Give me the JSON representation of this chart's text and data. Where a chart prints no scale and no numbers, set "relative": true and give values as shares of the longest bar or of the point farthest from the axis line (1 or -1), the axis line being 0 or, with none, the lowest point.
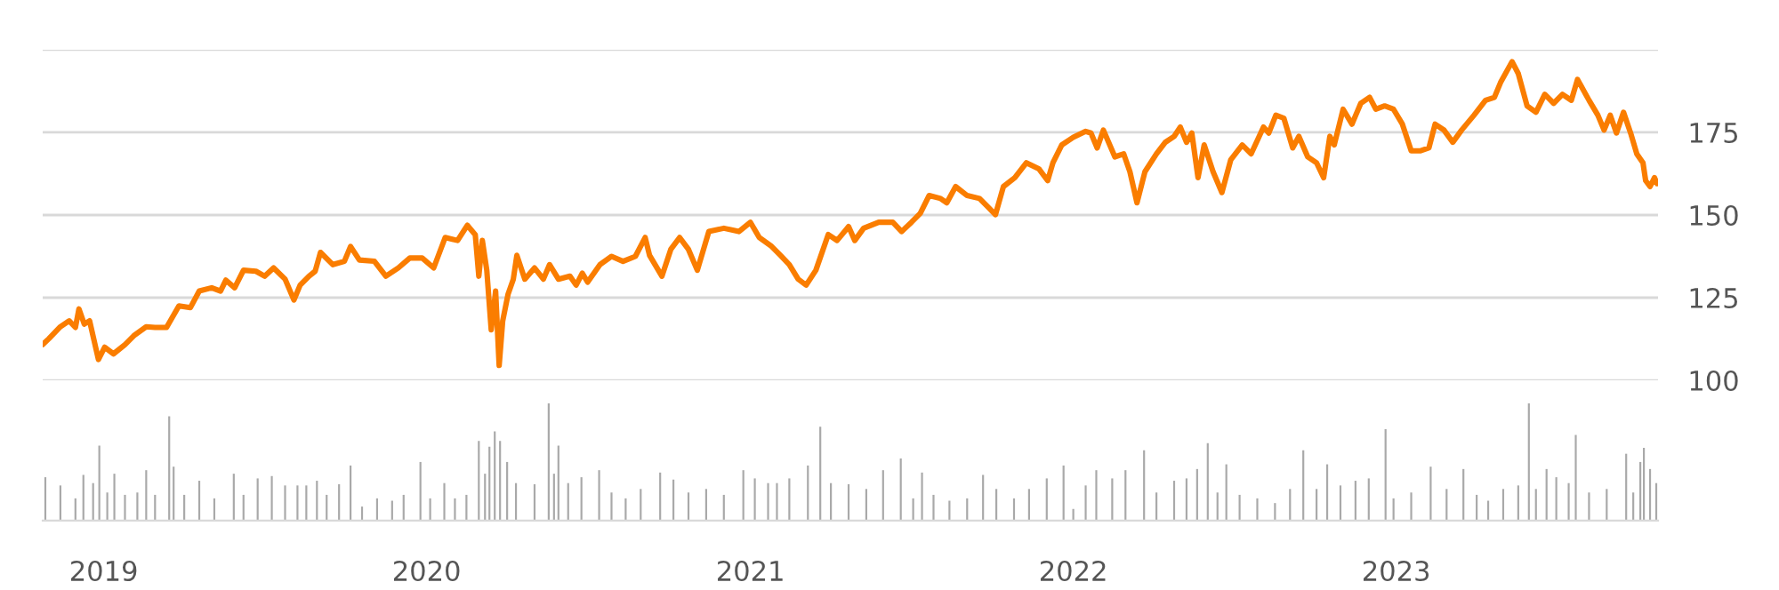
{
  "chart_data": [
    {
      "type": "line",
      "color": "#fa7d00",
      "xlim": [
        "2018-10-24",
        "2023-10-24"
      ],
      "ylim": [
        100,
        200
      ],
      "yticks": [
        100,
        125,
        150,
        175,
        {
          "value": 200,
          "label": null
        }
      ],
      "grid": "y",
      "tick_labels": "y",
      "x": [
        "2018-10-24",
        "2018-10-31",
        "2018-11-13",
        "2018-11-23",
        "2018-11-30",
        "2018-12-04",
        "2018-12-10",
        "2018-12-16",
        "2018-12-26",
        "2019-01-02",
        "2019-01-12",
        "2019-01-25",
        "2019-02-04",
        "2019-02-18",
        "2019-02-28",
        "2019-03-13",
        "2019-03-27",
        "2019-04-09",
        "2019-04-19",
        "2019-05-03",
        "2019-05-13",
        "2019-05-19",
        "2019-05-29",
        "2019-06-08",
        "2019-06-22",
        "2019-07-02",
        "2019-07-12",
        "2019-07-25",
        "2019-08-04",
        "2019-08-11",
        "2019-08-21",
        "2019-08-28",
        "2019-09-03",
        "2019-09-17",
        "2019-09-30",
        "2019-10-07",
        "2019-10-17",
        "2019-11-03",
        "2019-11-16",
        "2019-11-30",
        "2019-12-13",
        "2019-12-27",
        "2020-01-09",
        "2020-01-22",
        "2020-02-05",
        "2020-02-16",
        "2020-02-25",
        "2020-02-29",
        "2020-03-04",
        "2020-03-09",
        "2020-03-14",
        "2020-03-19",
        "2020-03-23",
        "2020-03-27",
        "2020-04-02",
        "2020-04-08",
        "2020-04-12",
        "2020-04-21",
        "2020-05-02",
        "2020-05-12",
        "2020-05-19",
        "2020-05-29",
        "2020-06-11",
        "2020-06-18",
        "2020-06-25",
        "2020-07-01",
        "2020-07-15",
        "2020-07-28",
        "2020-08-10",
        "2020-08-24",
        "2020-09-04",
        "2020-09-09",
        "2020-09-23",
        "2020-10-03",
        "2020-10-13",
        "2020-10-23",
        "2020-11-02",
        "2020-11-15",
        "2020-12-02",
        "2020-12-19",
        "2021-01-01",
        "2021-01-11",
        "2021-01-25",
        "2021-02-04",
        "2021-02-14",
        "2021-02-24",
        "2021-03-05",
        "2021-03-16",
        "2021-03-30",
        "2021-04-09",
        "2021-04-22",
        "2021-04-29",
        "2021-05-09",
        "2021-05-26",
        "2021-06-11",
        "2021-06-21",
        "2021-07-02",
        "2021-07-12",
        "2021-07-22",
        "2021-08-04",
        "2021-08-11",
        "2021-08-21",
        "2021-09-03",
        "2021-09-17",
        "2021-09-27",
        "2021-10-05",
        "2021-10-14",
        "2021-10-27",
        "2021-11-09",
        "2021-11-23",
        "2021-12-03",
        "2021-12-09",
        "2021-12-19",
        "2022-01-01",
        "2022-01-15",
        "2022-01-21",
        "2022-01-28",
        "2022-02-04",
        "2022-02-17",
        "2022-02-27",
        "2022-03-06",
        "2022-03-14",
        "2022-03-23",
        "2022-04-05",
        "2022-04-15",
        "2022-04-25",
        "2022-05-02",
        "2022-05-09",
        "2022-05-15",
        "2022-05-22",
        "2022-05-29",
        "2022-06-08",
        "2022-06-18",
        "2022-06-28",
        "2022-07-11",
        "2022-07-21",
        "2022-08-04",
        "2022-08-10",
        "2022-08-18",
        "2022-08-27",
        "2022-09-06",
        "2022-09-13",
        "2022-09-23",
        "2022-10-03",
        "2022-10-11",
        "2022-10-18",
        "2022-10-23",
        "2022-11-02",
        "2022-11-12",
        "2022-11-22",
        "2022-12-02",
        "2022-12-09",
        "2022-12-19",
        "2022-12-29",
        "2023-01-08",
        "2023-01-18",
        "2023-01-28",
        "2023-02-07",
        "2023-02-14",
        "2023-02-24",
        "2023-03-06",
        "2023-03-16",
        "2023-03-30",
        "2023-04-12",
        "2023-04-22",
        "2023-04-29",
        "2023-05-12",
        "2023-05-19",
        "2023-05-29",
        "2023-06-08",
        "2023-06-18",
        "2023-06-28",
        "2023-07-08",
        "2023-07-18",
        "2023-07-25",
        "2023-08-07",
        "2023-08-17",
        "2023-08-24",
        "2023-08-31",
        "2023-09-07",
        "2023-09-15",
        "2023-09-23",
        "2023-09-30",
        "2023-10-07",
        "2023-10-10",
        "2023-10-15",
        "2023-10-20",
        "2023-10-23"
      ],
      "values": [
        110.8,
        112.6,
        116.2,
        118,
        116,
        121.6,
        117,
        118,
        106.3,
        110,
        108,
        110.8,
        113.5,
        116.2,
        116,
        116,
        122.5,
        122,
        127,
        128,
        127,
        130.3,
        128,
        133.3,
        133,
        131.5,
        134,
        130.6,
        124.3,
        128.8,
        131.5,
        133,
        138.7,
        135,
        136,
        140.5,
        136.4,
        136,
        131.5,
        134,
        137,
        137,
        134,
        143.2,
        142.3,
        146.9,
        144,
        131.5,
        142.3,
        133.3,
        115.3,
        127,
        104.5,
        118,
        126,
        130.6,
        137.8,
        130.6,
        134,
        130.6,
        135,
        130.6,
        131.5,
        128.8,
        132.4,
        129.7,
        135,
        137.5,
        136,
        137.5,
        143.2,
        137.8,
        131.5,
        139.6,
        143.2,
        139.6,
        133.3,
        145,
        146,
        145,
        147.8,
        143.2,
        140.5,
        137.8,
        135,
        130.6,
        128.8,
        133.3,
        144.1,
        142.3,
        146.5,
        142.3,
        146,
        147.8,
        147.8,
        145,
        147.8,
        150.5,
        155.9,
        155,
        153.7,
        158.6,
        155.9,
        155,
        152.3,
        150.1,
        158.6,
        161.3,
        165.8,
        164,
        160.4,
        165.8,
        171.2,
        173.5,
        175.3,
        174.8,
        170.3,
        175.7,
        167.6,
        168.5,
        163.1,
        153.7,
        163.1,
        168.5,
        172,
        173.8,
        176.6,
        172,
        174.8,
        161.3,
        171.2,
        163.1,
        156.8,
        166.7,
        171.2,
        168.5,
        176.6,
        174.8,
        180.2,
        179.3,
        170.3,
        173.8,
        167.6,
        165.8,
        161.3,
        173.8,
        171.2,
        182,
        177.5,
        183.8,
        185.6,
        182,
        183,
        182,
        177.5,
        169.4,
        169.4,
        170.3,
        177.5,
        175.7,
        172,
        175.7,
        180.2,
        184.7,
        185.6,
        190.1,
        196.4,
        192.8,
        183,
        181.1,
        186.5,
        183.8,
        186.5,
        184.7,
        191,
        184.7,
        180.2,
        175.7,
        180.2,
        174.8,
        181.1,
        174.8,
        168.5,
        165.8,
        160.4,
        158.6,
        161.3,
        159.5
      ]
    },
    {
      "type": "bar",
      "color": "#a9a9a9",
      "relative": true,
      "xlim": [
        "2018-10-24",
        "2023-10-24"
      ],
      "xticks": [
        "2019",
        "2020",
        "2021",
        "2022",
        "2023"
      ],
      "tick_labels": "x",
      "x": [
        "2018-10-27",
        "2018-11-13",
        "2018-11-30",
        "2018-12-09",
        "2018-12-20",
        "2018-12-27",
        "2019-01-05",
        "2019-01-13",
        "2019-01-25",
        "2019-02-08",
        "2019-02-18",
        "2019-02-28",
        "2019-03-16",
        "2019-03-21",
        "2019-04-02",
        "2019-04-19",
        "2019-05-06",
        "2019-05-28",
        "2019-06-08",
        "2019-06-24",
        "2019-07-10",
        "2019-07-25",
        "2019-08-08",
        "2019-08-18",
        "2019-08-30",
        "2019-09-10",
        "2019-09-24",
        "2019-10-07",
        "2019-10-20",
        "2019-11-06",
        "2019-11-23",
        "2019-12-06",
        "2019-12-25",
        "2020-01-05",
        "2020-01-21",
        "2020-02-02",
        "2020-02-15",
        "2020-02-29",
        "2020-03-07",
        "2020-03-12",
        "2020-03-18",
        "2020-03-24",
        "2020-04-01",
        "2020-04-11",
        "2020-05-02",
        "2020-05-18",
        "2020-05-24",
        "2020-05-29",
        "2020-06-09",
        "2020-06-24",
        "2020-07-14",
        "2020-07-28",
        "2020-08-13",
        "2020-08-30",
        "2020-09-21",
        "2020-10-06",
        "2020-10-23",
        "2020-11-12",
        "2020-12-02",
        "2020-12-24",
        "2021-01-06",
        "2021-01-21",
        "2021-01-31",
        "2021-02-14",
        "2021-03-07",
        "2021-03-21",
        "2021-04-02",
        "2021-04-22",
        "2021-05-12",
        "2021-05-31",
        "2021-06-20",
        "2021-07-04",
        "2021-07-14",
        "2021-07-27",
        "2021-08-14",
        "2021-09-03",
        "2021-09-21",
        "2021-10-06",
        "2021-10-26",
        "2021-11-12",
        "2021-12-02",
        "2021-12-21",
        "2022-01-01",
        "2022-01-15",
        "2022-01-27",
        "2022-02-14",
        "2022-03-01",
        "2022-03-22",
        "2022-04-05",
        "2022-04-25",
        "2022-05-09",
        "2022-05-21",
        "2022-06-02",
        "2022-06-13",
        "2022-06-23",
        "2022-07-08",
        "2022-07-28",
        "2022-08-17",
        "2022-09-03",
        "2022-09-18",
        "2022-10-03",
        "2022-10-15",
        "2022-10-30",
        "2022-11-16",
        "2022-12-01",
        "2022-12-20",
        "2022-12-29",
        "2023-01-18",
        "2023-02-09",
        "2023-02-27",
        "2023-03-18",
        "2023-04-02",
        "2023-04-15",
        "2023-05-02",
        "2023-05-19",
        "2023-05-31",
        "2023-06-08",
        "2023-06-20",
        "2023-07-01",
        "2023-07-15",
        "2023-07-23",
        "2023-08-07",
        "2023-08-27",
        "2023-09-18",
        "2023-09-26",
        "2023-10-04",
        "2023-10-08",
        "2023-10-15",
        "2023-10-22"
      ],
      "values": [
        0.37,
        0.3,
        0.19,
        0.39,
        0.32,
        0.64,
        0.24,
        0.4,
        0.22,
        0.24,
        0.43,
        0.22,
        0.89,
        0.46,
        0.22,
        0.34,
        0.19,
        0.4,
        0.22,
        0.36,
        0.38,
        0.3,
        0.3,
        0.3,
        0.34,
        0.22,
        0.31,
        0.47,
        0.12,
        0.19,
        0.17,
        0.22,
        0.5,
        0.19,
        0.32,
        0.19,
        0.22,
        0.68,
        0.4,
        0.63,
        0.76,
        0.68,
        0.5,
        0.32,
        0.31,
        1.0,
        0.4,
        0.64,
        0.32,
        0.37,
        0.43,
        0.24,
        0.19,
        0.27,
        0.41,
        0.35,
        0.24,
        0.27,
        0.22,
        0.43,
        0.36,
        0.32,
        0.32,
        0.36,
        0.47,
        0.8,
        0.32,
        0.31,
        0.27,
        0.43,
        0.53,
        0.19,
        0.41,
        0.22,
        0.17,
        0.19,
        0.39,
        0.27,
        0.19,
        0.27,
        0.36,
        0.47,
        0.1,
        0.3,
        0.43,
        0.36,
        0.43,
        0.6,
        0.24,
        0.34,
        0.36,
        0.44,
        0.66,
        0.24,
        0.48,
        0.22,
        0.19,
        0.15,
        0.27,
        0.6,
        0.27,
        0.48,
        0.3,
        0.34,
        0.36,
        0.78,
        0.19,
        0.24,
        0.46,
        0.27,
        0.44,
        0.22,
        0.17,
        0.27,
        0.3,
        1.0,
        0.27,
        0.44,
        0.37,
        0.32,
        0.73,
        0.24,
        0.27,
        0.57,
        0.24,
        0.5,
        0.62,
        0.44,
        0.32
      ]
    }
  ]
}
